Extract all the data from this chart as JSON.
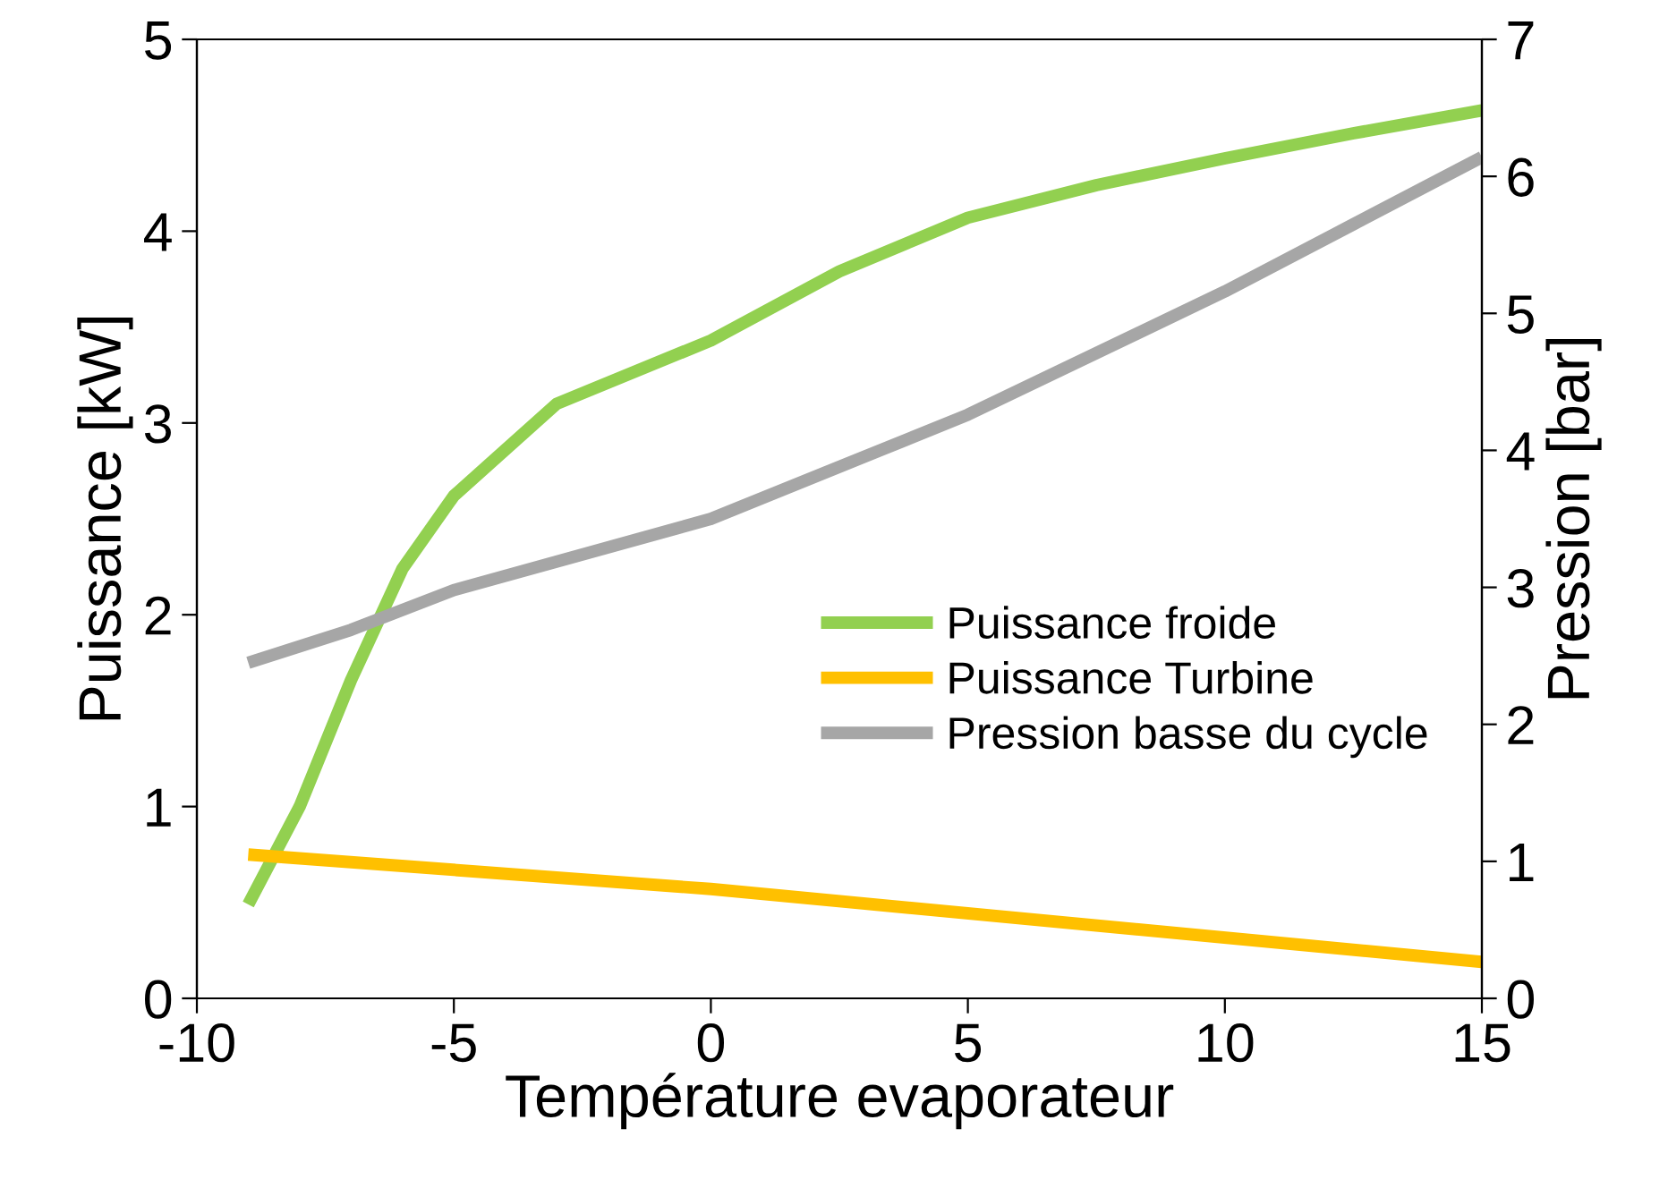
{
  "chart_data": {
    "type": "line",
    "xlabel": "Température evaporateur",
    "ylabel": "Puissance [kW]",
    "y2label": "Pression [bar]",
    "xlim": [
      -10,
      15
    ],
    "xticks": [
      -10,
      -5,
      0,
      5,
      10,
      15
    ],
    "ylim": [
      0,
      5
    ],
    "yticks": [
      0,
      1,
      2,
      3,
      4,
      5
    ],
    "y2lim": [
      0,
      7
    ],
    "y2ticks": [
      0,
      1,
      2,
      3,
      4,
      5,
      6,
      7
    ],
    "grid": false,
    "legend": "center right",
    "marker": "none",
    "line_style": "solid",
    "series": [
      {
        "name": "Puissance froide",
        "color": "#92d050",
        "x": [
          -9,
          -8,
          -7,
          -6,
          -5,
          -3,
          0,
          2.5,
          5,
          7.5,
          10,
          12.5,
          15
        ],
        "values": [
          0.49,
          1.0,
          1.66,
          2.24,
          2.62,
          3.1,
          3.43,
          3.79,
          4.07,
          4.24,
          4.38,
          4.51,
          4.63
        ]
      },
      {
        "name": "Puissance Turbine",
        "color": "#ffc000",
        "x": [
          -9,
          0,
          15
        ],
        "values": [
          0.75,
          0.57,
          0.19
        ]
      },
      {
        "name": "Pression basse du cycle",
        "color": "#a6a6a6",
        "axis": "y2",
        "x": [
          -9,
          -7,
          -5,
          0,
          5,
          10,
          12.5,
          15
        ],
        "values": [
          2.45,
          2.69,
          2.98,
          3.5,
          4.26,
          5.16,
          5.65,
          6.14
        ]
      }
    ]
  }
}
